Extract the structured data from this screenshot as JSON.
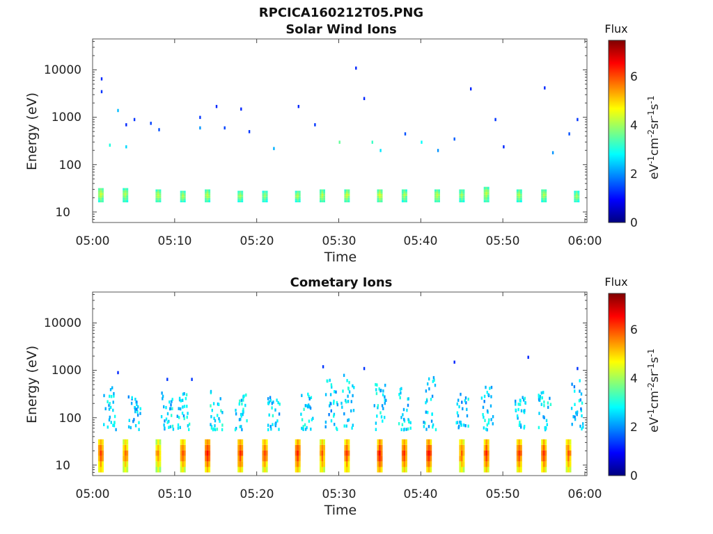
{
  "figure_title": "RPCICA160212T05.PNG",
  "colorbar": {
    "label": "Flux",
    "units_text": "eV",
    "ticks": [
      "0",
      "2",
      "4",
      "6"
    ],
    "range": [
      0,
      7.4
    ],
    "colormap": "jet"
  },
  "chart_data": [
    {
      "type": "heatmap",
      "title": "Solar Wind Ions",
      "xlabel": "Time",
      "ylabel": "Energy (eV)",
      "x_ticks": [
        "05:00",
        "05:10",
        "05:20",
        "05:30",
        "05:40",
        "05:50",
        "06:00"
      ],
      "x_range": [
        "05:00",
        "06:00"
      ],
      "y_ticks": [
        "10",
        "100",
        "1000",
        "10000"
      ],
      "y_scale": "log",
      "y_range": [
        6,
        45000
      ],
      "colorbar_label": "Flux",
      "colorbar_range": [
        0,
        7.4
      ],
      "low_energy_bands": [
        {
          "time": "05:01",
          "energy_min": 16,
          "energy_max": 32,
          "flux": 4.4
        },
        {
          "time": "05:04",
          "energy_min": 16,
          "energy_max": 32,
          "flux": 4.2
        },
        {
          "time": "05:08",
          "energy_min": 16,
          "energy_max": 30,
          "flux": 4.3
        },
        {
          "time": "05:11",
          "energy_min": 16,
          "energy_max": 28,
          "flux": 4.2
        },
        {
          "time": "05:14",
          "energy_min": 16,
          "energy_max": 30,
          "flux": 4.3
        },
        {
          "time": "05:18",
          "energy_min": 16,
          "energy_max": 28,
          "flux": 4.1
        },
        {
          "time": "05:21",
          "energy_min": 16,
          "energy_max": 28,
          "flux": 4.0
        },
        {
          "time": "05:25",
          "energy_min": 16,
          "energy_max": 28,
          "flux": 4.2
        },
        {
          "time": "05:28",
          "energy_min": 16,
          "energy_max": 30,
          "flux": 4.3
        },
        {
          "time": "05:31",
          "energy_min": 16,
          "energy_max": 30,
          "flux": 4.4
        },
        {
          "time": "05:35",
          "energy_min": 16,
          "energy_max": 30,
          "flux": 4.5
        },
        {
          "time": "05:38",
          "energy_min": 16,
          "energy_max": 30,
          "flux": 4.2
        },
        {
          "time": "05:42",
          "energy_min": 16,
          "energy_max": 30,
          "flux": 4.3
        },
        {
          "time": "05:45",
          "energy_min": 16,
          "energy_max": 30,
          "flux": 4.1
        },
        {
          "time": "05:48",
          "energy_min": 16,
          "energy_max": 34,
          "flux": 4.3
        },
        {
          "time": "05:52",
          "energy_min": 16,
          "energy_max": 30,
          "flux": 4.2
        },
        {
          "time": "05:55",
          "energy_min": 16,
          "energy_max": 30,
          "flux": 4.2
        },
        {
          "time": "05:59",
          "energy_min": 16,
          "energy_max": 28,
          "flux": 4.1
        }
      ],
      "scattered_counts": [
        {
          "time": "05:01",
          "energy": 6500,
          "flux": 1.2
        },
        {
          "time": "05:01",
          "energy": 3500,
          "flux": 1.3
        },
        {
          "time": "05:03",
          "energy": 1400,
          "flux": 2.3
        },
        {
          "time": "05:04",
          "energy": 700,
          "flux": 1.2
        },
        {
          "time": "05:05",
          "energy": 900,
          "flux": 1.3
        },
        {
          "time": "05:07",
          "energy": 750,
          "flux": 1.4
        },
        {
          "time": "05:08",
          "energy": 550,
          "flux": 1.5
        },
        {
          "time": "05:02",
          "energy": 260,
          "flux": 3.0
        },
        {
          "time": "05:04",
          "energy": 240,
          "flux": 2.5
        },
        {
          "time": "05:13",
          "energy": 1000,
          "flux": 1.3
        },
        {
          "time": "05:13",
          "energy": 600,
          "flux": 2.0
        },
        {
          "time": "05:15",
          "energy": 1700,
          "flux": 1.2
        },
        {
          "time": "05:16",
          "energy": 600,
          "flux": 1.4
        },
        {
          "time": "05:18",
          "energy": 1500,
          "flux": 1.2
        },
        {
          "time": "05:19",
          "energy": 500,
          "flux": 1.3
        },
        {
          "time": "05:22",
          "energy": 220,
          "flux": 2.2
        },
        {
          "time": "05:25",
          "energy": 1700,
          "flux": 1.2
        },
        {
          "time": "05:27",
          "energy": 700,
          "flux": 1.3
        },
        {
          "time": "05:30",
          "energy": 300,
          "flux": 3.5
        },
        {
          "time": "05:32",
          "energy": 11000,
          "flux": 1.2
        },
        {
          "time": "05:33",
          "energy": 2500,
          "flux": 1.2
        },
        {
          "time": "05:34",
          "energy": 300,
          "flux": 3.2
        },
        {
          "time": "05:35",
          "energy": 200,
          "flux": 2.6
        },
        {
          "time": "05:38",
          "energy": 450,
          "flux": 1.5
        },
        {
          "time": "05:40",
          "energy": 300,
          "flux": 2.8
        },
        {
          "time": "05:42",
          "energy": 200,
          "flux": 2.0
        },
        {
          "time": "05:44",
          "energy": 350,
          "flux": 1.6
        },
        {
          "time": "05:46",
          "energy": 4000,
          "flux": 1.2
        },
        {
          "time": "05:49",
          "energy": 900,
          "flux": 1.3
        },
        {
          "time": "05:50",
          "energy": 240,
          "flux": 1.2
        },
        {
          "time": "05:55",
          "energy": 4200,
          "flux": 1.2
        },
        {
          "time": "05:56",
          "energy": 180,
          "flux": 2.0
        },
        {
          "time": "05:58",
          "energy": 450,
          "flux": 1.5
        },
        {
          "time": "05:59",
          "energy": 900,
          "flux": 1.3
        }
      ]
    },
    {
      "type": "heatmap",
      "title": "Cometary Ions",
      "xlabel": "Time",
      "ylabel": "Energy (eV)",
      "x_ticks": [
        "05:00",
        "05:10",
        "05:20",
        "05:30",
        "05:40",
        "05:50",
        "06:00"
      ],
      "x_range": [
        "05:00",
        "06:00"
      ],
      "y_ticks": [
        "10",
        "100",
        "1000",
        "10000"
      ],
      "y_scale": "log",
      "y_range": [
        6,
        45000
      ],
      "colorbar_label": "Flux",
      "colorbar_range": [
        0,
        7.4
      ],
      "low_energy_bands": [
        {
          "time": "05:01",
          "energy_min": 7,
          "energy_max": 35,
          "flux": 6.2
        },
        {
          "time": "05:04",
          "energy_min": 7,
          "energy_max": 35,
          "flux": 5.8
        },
        {
          "time": "05:08",
          "energy_min": 7,
          "energy_max": 35,
          "flux": 5.6
        },
        {
          "time": "05:11",
          "energy_min": 7,
          "energy_max": 35,
          "flux": 6.0
        },
        {
          "time": "05:14",
          "energy_min": 7,
          "energy_max": 35,
          "flux": 6.5
        },
        {
          "time": "05:18",
          "energy_min": 7,
          "energy_max": 35,
          "flux": 6.3
        },
        {
          "time": "05:21",
          "energy_min": 7,
          "energy_max": 35,
          "flux": 6.1
        },
        {
          "time": "05:25",
          "energy_min": 7,
          "energy_max": 35,
          "flux": 6.4
        },
        {
          "time": "05:28",
          "energy_min": 7,
          "energy_max": 35,
          "flux": 6.0
        },
        {
          "time": "05:31",
          "energy_min": 7,
          "energy_max": 35,
          "flux": 6.2
        },
        {
          "time": "05:35",
          "energy_min": 7,
          "energy_max": 35,
          "flux": 6.6
        },
        {
          "time": "05:38",
          "energy_min": 7,
          "energy_max": 35,
          "flux": 6.3
        },
        {
          "time": "05:41",
          "energy_min": 7,
          "energy_max": 35,
          "flux": 6.5
        },
        {
          "time": "05:45",
          "energy_min": 7,
          "energy_max": 35,
          "flux": 5.9
        },
        {
          "time": "05:48",
          "energy_min": 7,
          "energy_max": 35,
          "flux": 6.4
        },
        {
          "time": "05:52",
          "energy_min": 7,
          "energy_max": 35,
          "flux": 6.2
        },
        {
          "time": "05:55",
          "energy_min": 7,
          "energy_max": 35,
          "flux": 6.3
        },
        {
          "time": "05:58",
          "energy_min": 7,
          "energy_max": 35,
          "flux": 6.0
        }
      ],
      "mid_energy_clusters": [
        {
          "time": "05:02",
          "energy_min": 60,
          "energy_max": 500,
          "flux": 2.5
        },
        {
          "time": "05:05",
          "energy_min": 60,
          "energy_max": 300,
          "flux": 2.4
        },
        {
          "time": "05:09",
          "energy_min": 60,
          "energy_max": 400,
          "flux": 2.5
        },
        {
          "time": "05:11",
          "energy_min": 60,
          "energy_max": 350,
          "flux": 2.6
        },
        {
          "time": "05:15",
          "energy_min": 60,
          "energy_max": 450,
          "flux": 2.7
        },
        {
          "time": "05:18",
          "energy_min": 60,
          "energy_max": 350,
          "flux": 2.7
        },
        {
          "time": "05:22",
          "energy_min": 60,
          "energy_max": 300,
          "flux": 2.5
        },
        {
          "time": "05:26",
          "energy_min": 60,
          "energy_max": 350,
          "flux": 2.6
        },
        {
          "time": "05:29",
          "energy_min": 60,
          "energy_max": 1100,
          "flux": 2.4
        },
        {
          "time": "05:31",
          "energy_min": 60,
          "energy_max": 900,
          "flux": 2.5
        },
        {
          "time": "05:35",
          "energy_min": 60,
          "energy_max": 600,
          "flux": 2.6
        },
        {
          "time": "05:38",
          "energy_min": 60,
          "energy_max": 450,
          "flux": 2.5
        },
        {
          "time": "05:41",
          "energy_min": 60,
          "energy_max": 800,
          "flux": 2.5
        },
        {
          "time": "05:45",
          "energy_min": 60,
          "energy_max": 350,
          "flux": 2.4
        },
        {
          "time": "05:48",
          "energy_min": 60,
          "energy_max": 500,
          "flux": 2.4
        },
        {
          "time": "05:52",
          "energy_min": 60,
          "energy_max": 300,
          "flux": 2.5
        },
        {
          "time": "05:55",
          "energy_min": 60,
          "energy_max": 400,
          "flux": 2.5
        },
        {
          "time": "05:59",
          "energy_min": 60,
          "energy_max": 900,
          "flux": 2.4
        }
      ],
      "scattered_counts": [
        {
          "time": "05:03",
          "energy": 900,
          "flux": 1.2
        },
        {
          "time": "05:09",
          "energy": 650,
          "flux": 1.3
        },
        {
          "time": "05:12",
          "energy": 650,
          "flux": 1.3
        },
        {
          "time": "05:28",
          "energy": 1200,
          "flux": 1.3
        },
        {
          "time": "05:33",
          "energy": 1100,
          "flux": 1.3
        },
        {
          "time": "05:44",
          "energy": 1500,
          "flux": 1.2
        },
        {
          "time": "05:53",
          "energy": 1900,
          "flux": 1.2
        },
        {
          "time": "05:59",
          "energy": 1100,
          "flux": 1.3
        }
      ]
    }
  ]
}
